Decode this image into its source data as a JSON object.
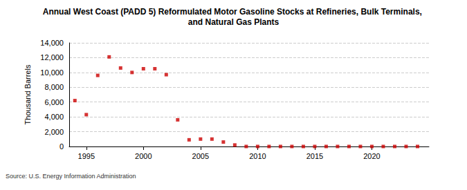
{
  "chart_data": {
    "type": "scatter",
    "title": "Annual West Coast (PADD 5) Reformulated Motor Gasoline Stocks at Refineries, Bulk Terminals, and Natural Gas Plants",
    "y_label": "Thousand Barrels",
    "annotation": "Source: U.S. Energy Information Administration",
    "x": [
      1994,
      1995,
      1996,
      1997,
      1998,
      1999,
      2000,
      2001,
      2002,
      2003,
      2004,
      2005,
      2006,
      2007,
      2008,
      2009,
      2010,
      2011,
      2012,
      2013,
      2014,
      2015,
      2016,
      2017,
      2018,
      2019,
      2020,
      2021,
      2022,
      2023,
      2024
    ],
    "values": [
      6200,
      4300,
      9600,
      12100,
      10600,
      10000,
      10500,
      10500,
      9700,
      3600,
      900,
      1000,
      1000,
      600,
      200,
      0,
      0,
      0,
      0,
      0,
      0,
      0,
      0,
      0,
      0,
      0,
      0,
      0,
      0,
      0,
      0
    ],
    "color": "#cc0000",
    "marker": "square",
    "xlim": [
      1993.5,
      2025
    ],
    "xticks": [
      1995,
      2000,
      2005,
      2010,
      2015,
      2020
    ],
    "ylim": [
      0,
      14000
    ],
    "yticks": [
      0,
      {
        "value": 2000,
        "label": "2,000"
      },
      {
        "value": 4000,
        "label": "4,000"
      },
      {
        "value": 6000,
        "label": "6,000"
      },
      {
        "value": 8000,
        "label": "8,000"
      },
      {
        "value": 10000,
        "label": "10,000"
      },
      {
        "value": 12000,
        "label": "12,000"
      },
      {
        "value": 14000,
        "label": "14,000"
      }
    ],
    "grid": true
  }
}
